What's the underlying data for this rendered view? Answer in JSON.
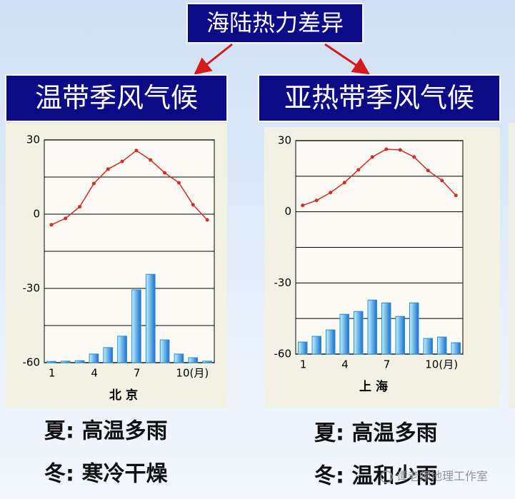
{
  "header": "海陆热力差异",
  "chart_data": [
    {
      "type": "climate",
      "title": "温带季风气候",
      "xlabel": "北 京",
      "categories": [
        "1",
        null,
        null,
        "4",
        null,
        null,
        "7",
        null,
        null,
        "10(月)",
        null,
        null
      ],
      "series": [
        {
          "type": "bar",
          "color": "#2b8fd8",
          "values": [
            -59.5,
            -59.4,
            -59.2,
            -56.5,
            -53.9,
            -49.3,
            -30.6,
            -24.3,
            -50.8,
            -56.5,
            -58,
            -59.4
          ]
        },
        {
          "type": "line",
          "color": "#d42a2a",
          "values": [
            -4.3,
            -1.7,
            3,
            12.4,
            18.2,
            21.3,
            25.7,
            21.9,
            16.7,
            12.7,
            3.8,
            -2.3
          ]
        }
      ],
      "ylim": [
        -60,
        30
      ],
      "yticks": [
        -60,
        -30,
        0,
        30
      ],
      "grid_lines": [
        -45,
        -15,
        15
      ],
      "notes": [
        "夏: 高温多雨",
        "冬: 寒冷干燥"
      ]
    },
    {
      "type": "climate",
      "title": "亚热带季风气候",
      "xlabel": "上 海",
      "categories": [
        "1",
        null,
        null,
        "4",
        null,
        null,
        "7",
        null,
        null,
        "10(月)",
        null,
        null
      ],
      "series": [
        {
          "type": "bar",
          "color": "#2b8fd8",
          "values": [
            -54.9,
            -52.5,
            -49.8,
            -43.2,
            -42,
            -37.2,
            -38.4,
            -44.1,
            -38.4,
            -53.4,
            -52.8,
            -55.2
          ]
        },
        {
          "type": "line",
          "color": "#d42a2a",
          "values": [
            2.7,
            4.8,
            8.1,
            12.3,
            17.7,
            23.1,
            26.4,
            26.1,
            23.1,
            17.4,
            13.2,
            6.9
          ]
        }
      ],
      "ylim": [
        -60,
        30
      ],
      "yticks": [
        -60,
        -30,
        0,
        30
      ],
      "grid_lines": [
        -45,
        -15,
        15
      ],
      "notes": [
        "夏: 高温多雨",
        "冬: 温和少雨"
      ]
    }
  ],
  "watermark": "谭老师地理工作室"
}
